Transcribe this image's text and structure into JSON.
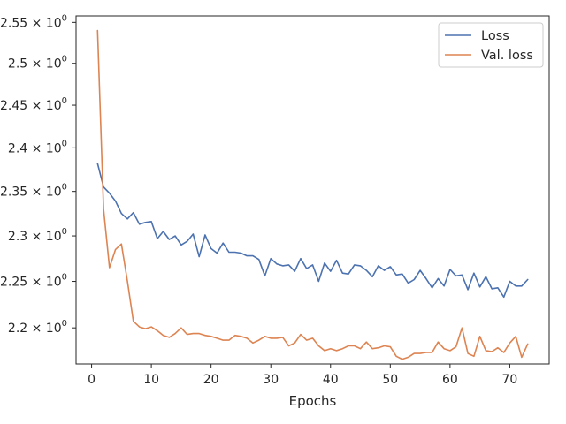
{
  "chart_data": {
    "type": "line",
    "title": "",
    "xlabel": "Epochs",
    "ylabel": "",
    "yscale": "log",
    "xlim": [
      -2.6,
      76.6
    ],
    "ylim": [
      2.162,
      2.558
    ],
    "grid": false,
    "legend_position": "top-right",
    "x_ticks": [
      0,
      10,
      20,
      30,
      40,
      50,
      60,
      70
    ],
    "x_tick_labels": [
      "0",
      "10",
      "20",
      "30",
      "40",
      "50",
      "60",
      "70"
    ],
    "y_ticks": [
      2.2,
      2.25,
      2.3,
      2.35,
      2.4,
      2.45,
      2.5,
      2.55
    ],
    "y_tick_labels": [
      {
        "base": "2.2",
        "exp": "0"
      },
      {
        "base": "2.25",
        "exp": "0"
      },
      {
        "base": "2.3",
        "exp": "0"
      },
      {
        "base": "2.35",
        "exp": "0"
      },
      {
        "base": "2.4",
        "exp": "0"
      },
      {
        "base": "2.45",
        "exp": "0"
      },
      {
        "base": "2.5",
        "exp": "0"
      },
      {
        "base": "2.55",
        "exp": "0"
      }
    ],
    "times_symbol": "×",
    "x": [
      1,
      2,
      3,
      4,
      5,
      6,
      7,
      8,
      9,
      10,
      11,
      12,
      13,
      14,
      15,
      16,
      17,
      18,
      19,
      20,
      21,
      22,
      23,
      24,
      25,
      26,
      27,
      28,
      29,
      30,
      31,
      32,
      33,
      34,
      35,
      36,
      37,
      38,
      39,
      40,
      41,
      42,
      43,
      44,
      45,
      46,
      47,
      48,
      49,
      50,
      51,
      52,
      53,
      54,
      55,
      56,
      57,
      58,
      59,
      60,
      61,
      62,
      63,
      64,
      65,
      66,
      67,
      68,
      69,
      70,
      71,
      72,
      73
    ],
    "series": [
      {
        "name": "Loss",
        "color": "#4c72b0",
        "values": [
          2.382,
          2.355,
          2.348,
          2.339,
          2.325,
          2.319,
          2.326,
          2.313,
          2.315,
          2.316,
          2.297,
          2.305,
          2.296,
          2.3,
          2.29,
          2.294,
          2.302,
          2.277,
          2.301,
          2.286,
          2.281,
          2.292,
          2.282,
          2.282,
          2.281,
          2.278,
          2.278,
          2.274,
          2.256,
          2.275,
          2.269,
          2.267,
          2.268,
          2.261,
          2.275,
          2.264,
          2.268,
          2.25,
          2.27,
          2.261,
          2.273,
          2.259,
          2.258,
          2.268,
          2.267,
          2.262,
          2.255,
          2.267,
          2.262,
          2.266,
          2.257,
          2.258,
          2.248,
          2.252,
          2.262,
          2.253,
          2.243,
          2.253,
          2.245,
          2.263,
          2.256,
          2.257,
          2.241,
          2.259,
          2.244,
          2.255,
          2.242,
          2.243,
          2.233,
          2.25,
          2.245,
          2.245,
          2.252
        ]
      },
      {
        "name": "Val. loss",
        "color": "#dd8452",
        "values": [
          2.54,
          2.33,
          2.265,
          2.285,
          2.291,
          2.25,
          2.207,
          2.201,
          2.199,
          2.201,
          2.197,
          2.192,
          2.19,
          2.194,
          2.2,
          2.193,
          2.194,
          2.194,
          2.192,
          2.191,
          2.189,
          2.187,
          2.187,
          2.192,
          2.191,
          2.189,
          2.184,
          2.187,
          2.191,
          2.189,
          2.189,
          2.19,
          2.181,
          2.184,
          2.193,
          2.187,
          2.189,
          2.181,
          2.176,
          2.178,
          2.176,
          2.178,
          2.181,
          2.181,
          2.178,
          2.185,
          2.178,
          2.179,
          2.181,
          2.18,
          2.17,
          2.167,
          2.169,
          2.173,
          2.173,
          2.174,
          2.174,
          2.185,
          2.178,
          2.176,
          2.18,
          2.2,
          2.173,
          2.17,
          2.191,
          2.176,
          2.175,
          2.179,
          2.174,
          2.184,
          2.191,
          2.169,
          2.183
        ]
      }
    ]
  }
}
